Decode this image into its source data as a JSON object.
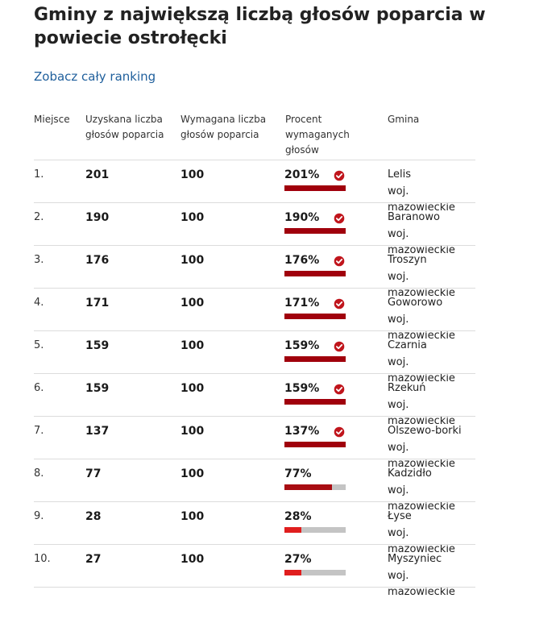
{
  "title": "Gminy z największą liczbą głosów poparcia w powiecie ostrołęcki",
  "ranking_link": "Zobacz cały ranking",
  "table": {
    "headers": {
      "rank": "Miejsce",
      "received": "Uzyskana liczba głosów poparcia",
      "required": "Wymagana liczba głosów poparcia",
      "percent": "Procent wymaganych głosów",
      "gmina": "Gmina"
    },
    "rows": [
      {
        "rank": "1.",
        "received": "201",
        "required": "100",
        "percent": "201%",
        "percent_value": 201,
        "met": true,
        "gmina": "Lelis",
        "woj": "woj. mazowieckie"
      },
      {
        "rank": "2.",
        "received": "190",
        "required": "100",
        "percent": "190%",
        "percent_value": 190,
        "met": true,
        "gmina": "Baranowo",
        "woj": "woj. mazowieckie"
      },
      {
        "rank": "3.",
        "received": "176",
        "required": "100",
        "percent": "176%",
        "percent_value": 176,
        "met": true,
        "gmina": "Troszyn",
        "woj": "woj. mazowieckie"
      },
      {
        "rank": "4.",
        "received": "171",
        "required": "100",
        "percent": "171%",
        "percent_value": 171,
        "met": true,
        "gmina": "Goworowo",
        "woj": "woj. mazowieckie"
      },
      {
        "rank": "5.",
        "received": "159",
        "required": "100",
        "percent": "159%",
        "percent_value": 159,
        "met": true,
        "gmina": "Czarnia",
        "woj": "woj. mazowieckie"
      },
      {
        "rank": "6.",
        "received": "159",
        "required": "100",
        "percent": "159%",
        "percent_value": 159,
        "met": true,
        "gmina": "Rzekuń",
        "woj": "woj. mazowieckie"
      },
      {
        "rank": "7.",
        "received": "137",
        "required": "100",
        "percent": "137%",
        "percent_value": 137,
        "met": true,
        "gmina": "Olszewo-borki",
        "woj": "woj. mazowieckie"
      },
      {
        "rank": "8.",
        "received": "77",
        "required": "100",
        "percent": "77%",
        "percent_value": 77,
        "met": false,
        "gmina": "Kadzidło",
        "woj": "woj. mazowieckie"
      },
      {
        "rank": "9.",
        "received": "28",
        "required": "100",
        "percent": "28%",
        "percent_value": 28,
        "met": false,
        "gmina": "Łyse",
        "woj": "woj. mazowieckie"
      },
      {
        "rank": "10.",
        "received": "27",
        "required": "100",
        "percent": "27%",
        "percent_value": 27,
        "met": false,
        "gmina": "Myszyniec",
        "woj": "woj. mazowieckie"
      }
    ]
  },
  "colors": {
    "bar_met": "#a0000c",
    "bar_high": "#a80d12",
    "bar_low": "#e01e1e",
    "bar_track": "#c4c4c4",
    "check": "#c0151c",
    "link": "#1f5f9c"
  },
  "icons": {
    "met": "check-circle-icon"
  }
}
